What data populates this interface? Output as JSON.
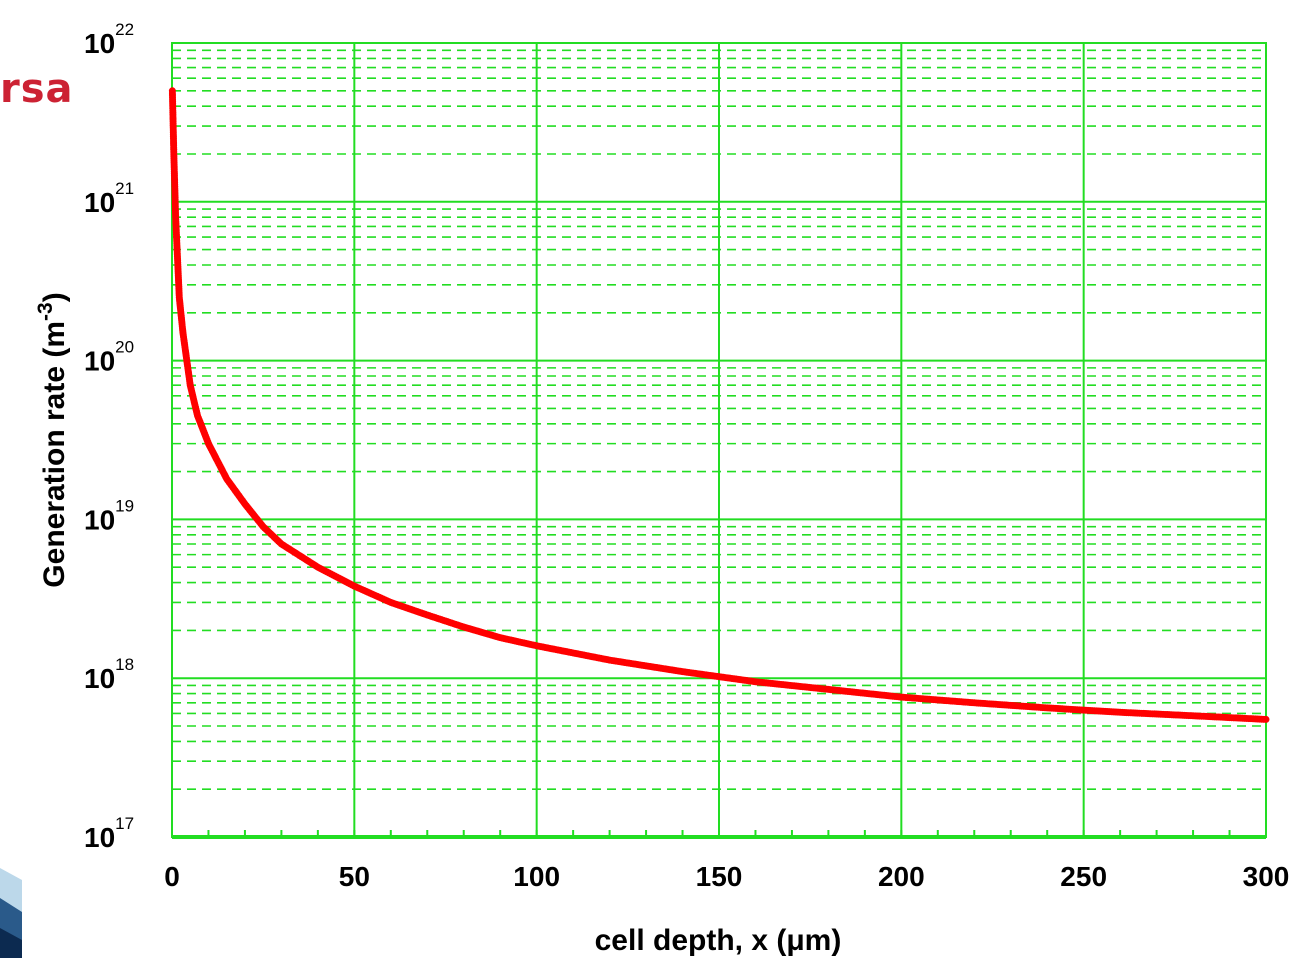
{
  "page": {
    "title_fragment": "rsa"
  },
  "colors": {
    "grid": "#22dd22",
    "series": "#ff0000",
    "title_fragment": "#cc2233"
  },
  "chart_data": {
    "type": "scatter",
    "title": "",
    "xlabel": "cell depth, x (μm)",
    "ylabel": "Generation rate (m-3)",
    "ylabel_parts": {
      "main": "Generation rate (m",
      "sup": "-3",
      "end": ")"
    },
    "xlim": [
      0,
      300
    ],
    "ylim": [
      1e+17,
      1e+22
    ],
    "yscale": "log",
    "grid": true,
    "xticks": [
      "0",
      "50",
      "100",
      "150",
      "200",
      "250",
      "300"
    ],
    "yticks": [
      {
        "base": "10",
        "exp": "17"
      },
      {
        "base": "10",
        "exp": "18"
      },
      {
        "base": "10",
        "exp": "19"
      },
      {
        "base": "10",
        "exp": "20"
      },
      {
        "base": "10",
        "exp": "21"
      },
      {
        "base": "10",
        "exp": "22"
      }
    ],
    "series": [
      {
        "x": [
          0.1,
          0.5,
          1,
          2,
          3,
          5,
          7,
          10,
          15,
          20,
          25,
          30,
          40,
          50,
          60,
          70,
          80,
          90,
          100,
          120,
          140,
          160,
          180,
          200,
          220,
          240,
          260,
          280,
          300
        ],
        "y": [
          5e+21,
          2e+21,
          8e+20,
          2.5e+20,
          1.5e+20,
          7e+19,
          4.5e+19,
          3e+19,
          1.8e+19,
          1.25e+19,
          9e+18,
          7e+18,
          5e+18,
          3.8e+18,
          3e+18,
          2.5e+18,
          2.1e+18,
          1.8e+18,
          1.6e+18,
          1.3e+18,
          1.1e+18,
          9.5e+17,
          8.5e+17,
          7.6e+17,
          7e+17,
          6.5e+17,
          6.1e+17,
          5.8e+17,
          5.5e+17
        ]
      }
    ]
  }
}
